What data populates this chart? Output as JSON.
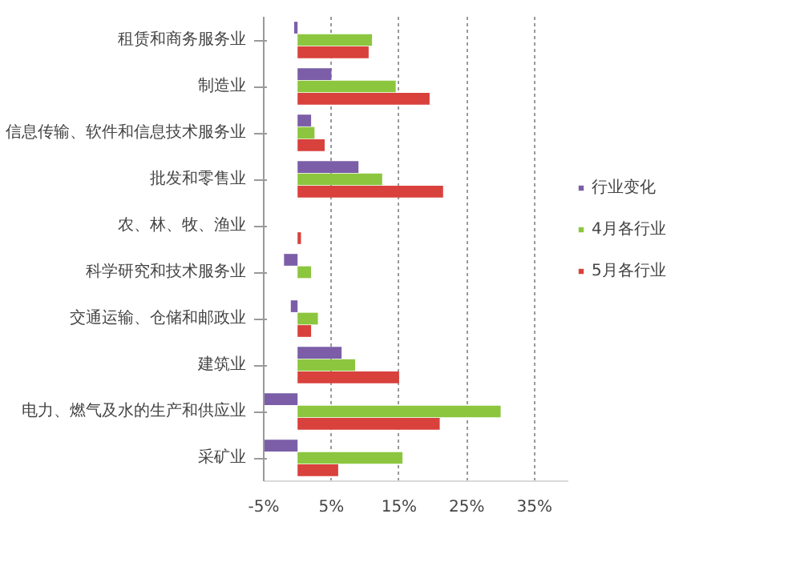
{
  "chart_data": {
    "type": "bar",
    "orientation": "horizontal",
    "categories": [
      "租赁和商务服务业",
      "制造业",
      "信息传输、软件和信息技术服务业",
      "批发和零售业",
      "农、林、牧、渔业",
      "科学研究和技术服务业",
      "交通运输、仓储和邮政业",
      "建筑业",
      "电力、燃气及水的生产和供应业",
      "采矿业"
    ],
    "series": [
      {
        "name": "行业变化",
        "color": "#7b5ea7",
        "values": [
          -0.5,
          5,
          2,
          9,
          0,
          -2,
          -1,
          6.5,
          -5,
          -5
        ]
      },
      {
        "name": "4月各行业",
        "color": "#8cc63f",
        "values": [
          11,
          14.5,
          2.5,
          12.5,
          0,
          2,
          3,
          8.5,
          30,
          15.5
        ]
      },
      {
        "name": "5月各行业",
        "color": "#d9413c",
        "values": [
          10.5,
          19.5,
          4,
          21.5,
          0.5,
          0,
          2,
          15,
          21,
          6
        ]
      }
    ],
    "xlim": [
      -5,
      40
    ],
    "xticks": [
      {
        "value": -5,
        "label": "-5%"
      },
      {
        "value": 5,
        "label": "5%"
      },
      {
        "value": 15,
        "label": "15%"
      },
      {
        "value": 25,
        "label": "25%"
      },
      {
        "value": 35,
        "label": "35%"
      }
    ],
    "grid": "x",
    "legend": "right"
  }
}
